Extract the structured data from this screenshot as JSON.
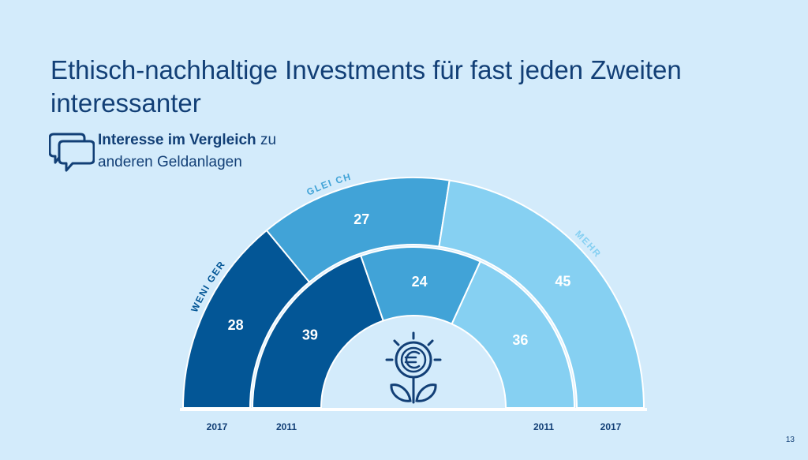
{
  "slide": {
    "title": "Ethisch-nachhaltige Investments für fast jeden Zweiten interessanter",
    "subtitle_bold": "Interesse im Vergleich",
    "subtitle_rest_1": " zu",
    "subtitle_rest_2": "anderen Geldanlagen",
    "page_number": "13"
  },
  "chart_data": {
    "type": "pie",
    "subtype": "nested-semicircle",
    "categories": [
      "WENIGER",
      "GLEICH",
      "MEHR"
    ],
    "category_labels": [
      "WENI GER",
      "GLEI CH",
      "MEHR"
    ],
    "series": [
      {
        "name": "2017",
        "ring": "outer",
        "values": [
          28,
          27,
          45
        ]
      },
      {
        "name": "2011",
        "ring": "inner",
        "values": [
          39,
          24,
          36
        ]
      }
    ],
    "bottom_labels": {
      "outer_left": "2017",
      "inner_left": "2011",
      "inner_right": "2011",
      "outer_right": "2017"
    },
    "colors": {
      "WENIGER": "#035696",
      "GLEICH": "#41a3d7",
      "MEHR": "#86d0f2"
    },
    "label_colors": {
      "WENIGER": "#035696",
      "GLEICH": "#41a3d7",
      "MEHR": "#86d0f2"
    },
    "center_icon": "euro-flower-icon"
  },
  "colors": {
    "background": "#d3ebfb",
    "title": "#123f76",
    "icon": "#123f76"
  }
}
